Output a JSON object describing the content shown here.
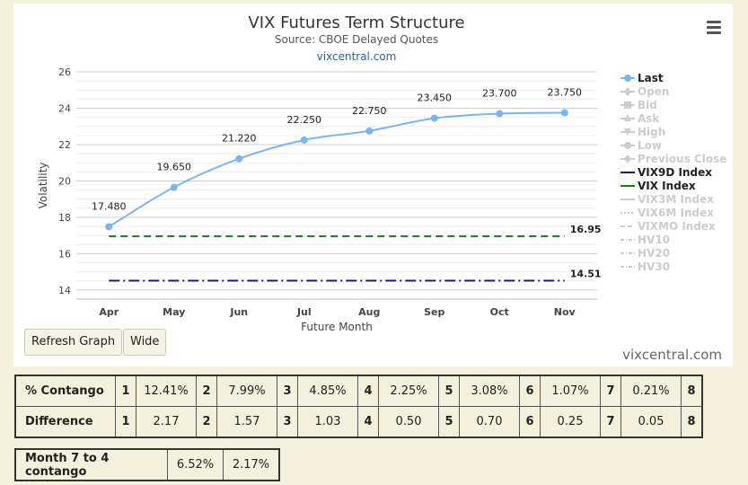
{
  "chart_data": {
    "type": "line",
    "title": "VIX Futures Term Structure",
    "subtitle": "Source: CBOE Delayed Quotes",
    "link": "vixcentral.com",
    "xlabel": "Future Month",
    "ylabel": "Volatility",
    "categories": [
      "Apr",
      "May",
      "Jun",
      "Jul",
      "Aug",
      "Sep",
      "Oct",
      "Nov"
    ],
    "ylim": [
      13.5,
      26
    ],
    "yticks": [
      14,
      16,
      18,
      20,
      22,
      24,
      26
    ],
    "series": [
      {
        "name": "Last",
        "values": [
          17.48,
          19.65,
          21.22,
          22.25,
          22.75,
          23.45,
          23.7,
          23.75
        ],
        "labels": [
          "17.480",
          "19.650",
          "21.220",
          "22.250",
          "22.750",
          "23.450",
          "23.700",
          "23.750"
        ],
        "color": "#7cb5ec"
      }
    ],
    "reference_lines": [
      {
        "name": "VIX Index",
        "value": 16.95,
        "label": "16.95",
        "color": "#1a7a1a",
        "dash": "dash"
      },
      {
        "name": "VIX9D Index",
        "value": 14.51,
        "label": "14.51",
        "color": "#1a1a7a",
        "dash": "dashdot"
      }
    ],
    "legend": {
      "placement": "right",
      "items": [
        {
          "name": "Last",
          "active": true,
          "symbol": "circle",
          "color": "#7cb5ec"
        },
        {
          "name": "Open",
          "active": false,
          "symbol": "diamond"
        },
        {
          "name": "Bid",
          "active": false,
          "symbol": "square"
        },
        {
          "name": "Ask",
          "active": false,
          "symbol": "triangle"
        },
        {
          "name": "High",
          "active": false,
          "symbol": "triangle-down"
        },
        {
          "name": "Low",
          "active": false,
          "symbol": "circle"
        },
        {
          "name": "Previous Close",
          "active": false,
          "symbol": "diamond"
        },
        {
          "name": "VIX9D Index",
          "active": true,
          "symbol": "line",
          "color": "#1a1a7a"
        },
        {
          "name": "VIX Index",
          "active": true,
          "symbol": "line",
          "color": "#1a7a1a"
        },
        {
          "name": "VIX3M Index",
          "active": false,
          "symbol": "line"
        },
        {
          "name": "VIX6M Index",
          "active": false,
          "symbol": "dotted"
        },
        {
          "name": "VIXMO Index",
          "active": false,
          "symbol": "dashed"
        },
        {
          "name": "HV10",
          "active": false,
          "symbol": "dashdot"
        },
        {
          "name": "HV20",
          "active": false,
          "symbol": "dashdot"
        },
        {
          "name": "HV30",
          "active": false,
          "symbol": "dashdot"
        }
      ]
    },
    "grid": true
  },
  "buttons": {
    "refresh": "Refresh Graph",
    "wide": "Wide"
  },
  "watermark": "vixcentral.com",
  "contango_table": {
    "rows": [
      {
        "header": "% Contango",
        "cells": [
          [
            "1",
            "12.41%"
          ],
          [
            "2",
            "7.99%"
          ],
          [
            "3",
            "4.85%"
          ],
          [
            "4",
            "2.25%"
          ],
          [
            "5",
            "3.08%"
          ],
          [
            "6",
            "1.07%"
          ],
          [
            "7",
            "0.21%"
          ],
          [
            "8",
            ""
          ]
        ]
      },
      {
        "header": "Difference",
        "cells": [
          [
            "1",
            "2.17"
          ],
          [
            "2",
            "1.57"
          ],
          [
            "3",
            "1.03"
          ],
          [
            "4",
            "0.50"
          ],
          [
            "5",
            "0.70"
          ],
          [
            "6",
            "0.25"
          ],
          [
            "7",
            "0.05"
          ],
          [
            "8",
            ""
          ]
        ]
      }
    ]
  },
  "month_table": {
    "header": "Month 7 to 4 contango",
    "percent": "6.52%",
    "value": "2.17%"
  }
}
